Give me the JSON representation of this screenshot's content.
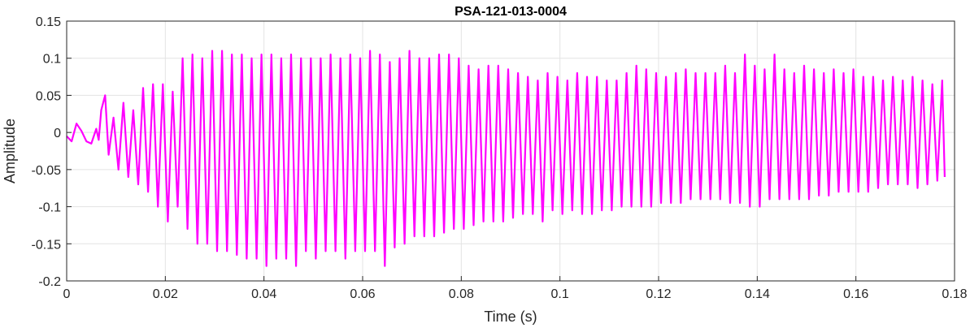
{
  "chart_data": {
    "type": "line",
    "title": "PSA-121-013-0004",
    "xlabel": "Time (s)",
    "ylabel": "Amplitude",
    "xlim": [
      0,
      0.18
    ],
    "ylim": [
      -0.2,
      0.15
    ],
    "xticks": [
      0,
      0.02,
      0.04,
      0.06,
      0.08,
      0.1,
      0.12,
      0.14,
      0.16,
      0.18
    ],
    "xtick_labels": [
      "0",
      "0.02",
      "0.04",
      "0.06",
      "0.08",
      "0.1",
      "0.12",
      "0.14",
      "0.16",
      "0.18"
    ],
    "yticks": [
      -0.2,
      -0.15,
      -0.1,
      -0.05,
      0,
      0.05,
      0.1,
      0.15
    ],
    "ytick_labels": [
      "-0.2",
      "-0.15",
      "-0.1",
      "-0.05",
      "0",
      "0.05",
      "0.1",
      "0.15"
    ],
    "grid": true,
    "series_color": "#ff00ff",
    "series": [
      {
        "x": [
          0.0,
          0.001,
          0.002,
          0.003,
          0.004,
          0.005,
          0.006,
          0.0065,
          0.007,
          0.0078,
          0.0085,
          0.0095,
          0.0105,
          0.0115,
          0.0125,
          0.0135,
          0.0145,
          0.0155,
          0.0165,
          0.0175,
          0.0185,
          0.0195,
          0.0205,
          0.0215,
          0.0225,
          0.0235,
          0.0245,
          0.0255,
          0.0265,
          0.0275,
          0.0285,
          0.0295,
          0.0305,
          0.0315,
          0.0325,
          0.0335,
          0.0345,
          0.0355,
          0.0365,
          0.0375,
          0.0385,
          0.0395,
          0.0405,
          0.0415,
          0.0425,
          0.0435,
          0.0445,
          0.0455,
          0.0465,
          0.0475,
          0.0485,
          0.0495,
          0.0505,
          0.0515,
          0.0525,
          0.0535,
          0.0545,
          0.0555,
          0.0565,
          0.0575,
          0.0585,
          0.0595,
          0.0605,
          0.0615,
          0.0625,
          0.0635,
          0.0645,
          0.0655,
          0.0665,
          0.0675,
          0.0685,
          0.0695,
          0.0705,
          0.0715,
          0.0725,
          0.0735,
          0.0745,
          0.0755,
          0.0765,
          0.0775,
          0.0785,
          0.0795,
          0.0805,
          0.0815,
          0.0825,
          0.0835,
          0.0845,
          0.0855,
          0.0865,
          0.0875,
          0.0885,
          0.0895,
          0.0905,
          0.0915,
          0.0925,
          0.0935,
          0.0945,
          0.0955,
          0.0965,
          0.0975,
          0.0985,
          0.0995,
          0.1005,
          0.1015,
          0.1025,
          0.1035,
          0.1045,
          0.1055,
          0.1065,
          0.1075,
          0.1085,
          0.1095,
          0.1105,
          0.1115,
          0.1125,
          0.1135,
          0.1145,
          0.1155,
          0.1165,
          0.1175,
          0.1185,
          0.1195,
          0.1205,
          0.1215,
          0.1225,
          0.1235,
          0.1245,
          0.1255,
          0.1265,
          0.1275,
          0.1285,
          0.1295,
          0.1305,
          0.1315,
          0.1325,
          0.1335,
          0.1345,
          0.1355,
          0.1365,
          0.1375,
          0.1385,
          0.1395,
          0.1405,
          0.1415,
          0.1425,
          0.1435,
          0.1445,
          0.1455,
          0.1465,
          0.1475,
          0.1485,
          0.1495,
          0.1505,
          0.1515,
          0.1525,
          0.1535,
          0.1545,
          0.1555,
          0.1565,
          0.1575,
          0.1585,
          0.1595,
          0.1605,
          0.1615,
          0.1625,
          0.1635,
          0.1645,
          0.1655,
          0.1665,
          0.1675,
          0.1685,
          0.1695,
          0.1705,
          0.1715,
          0.1725,
          0.1735,
          0.1745,
          0.1755,
          0.1765,
          0.1775,
          0.178
        ],
        "y": [
          -0.005,
          -0.012,
          0.012,
          0.002,
          -0.012,
          -0.015,
          0.005,
          -0.01,
          0.03,
          0.05,
          -0.03,
          0.02,
          -0.05,
          0.04,
          -0.06,
          0.03,
          -0.07,
          0.06,
          -0.08,
          0.065,
          -0.1,
          0.065,
          -0.12,
          0.055,
          -0.1,
          0.1,
          -0.13,
          0.105,
          -0.15,
          0.1,
          -0.15,
          0.11,
          -0.16,
          0.11,
          -0.16,
          0.105,
          -0.165,
          0.105,
          -0.17,
          0.1,
          -0.17,
          0.105,
          -0.18,
          0.105,
          -0.17,
          0.1,
          -0.17,
          0.105,
          -0.18,
          0.1,
          -0.16,
          0.1,
          -0.17,
          0.1,
          -0.16,
          0.105,
          -0.16,
          0.1,
          -0.17,
          0.105,
          -0.16,
          0.1,
          -0.16,
          0.11,
          -0.16,
          0.105,
          -0.18,
          0.095,
          -0.155,
          0.1,
          -0.15,
          0.11,
          -0.14,
          0.1,
          -0.14,
          0.1,
          -0.14,
          0.105,
          -0.135,
          0.105,
          -0.13,
          0.1,
          -0.13,
          0.09,
          -0.125,
          0.085,
          -0.12,
          0.09,
          -0.12,
          0.09,
          -0.12,
          0.085,
          -0.115,
          0.08,
          -0.11,
          0.075,
          -0.11,
          0.07,
          -0.12,
          0.08,
          -0.105,
          0.075,
          -0.11,
          0.07,
          -0.105,
          0.08,
          -0.11,
          0.075,
          -0.11,
          0.075,
          -0.105,
          0.07,
          -0.105,
          0.07,
          -0.1,
          0.08,
          -0.1,
          0.09,
          -0.1,
          0.085,
          -0.1,
          0.08,
          -0.095,
          0.075,
          -0.095,
          0.08,
          -0.095,
          0.085,
          -0.09,
          0.08,
          -0.09,
          0.08,
          -0.09,
          0.08,
          -0.09,
          0.09,
          -0.095,
          0.08,
          -0.095,
          0.105,
          -0.1,
          0.09,
          -0.1,
          0.085,
          -0.09,
          0.105,
          -0.09,
          0.085,
          -0.09,
          0.08,
          -0.09,
          0.09,
          -0.09,
          0.085,
          -0.085,
          0.08,
          -0.085,
          0.085,
          -0.08,
          0.08,
          -0.08,
          0.085,
          -0.08,
          0.075,
          -0.08,
          0.075,
          -0.075,
          0.07,
          -0.07,
          0.075,
          -0.07,
          0.07,
          -0.07,
          0.075,
          -0.075,
          0.07,
          -0.07,
          0.065,
          -0.065,
          0.07,
          -0.06
        ]
      }
    ]
  }
}
